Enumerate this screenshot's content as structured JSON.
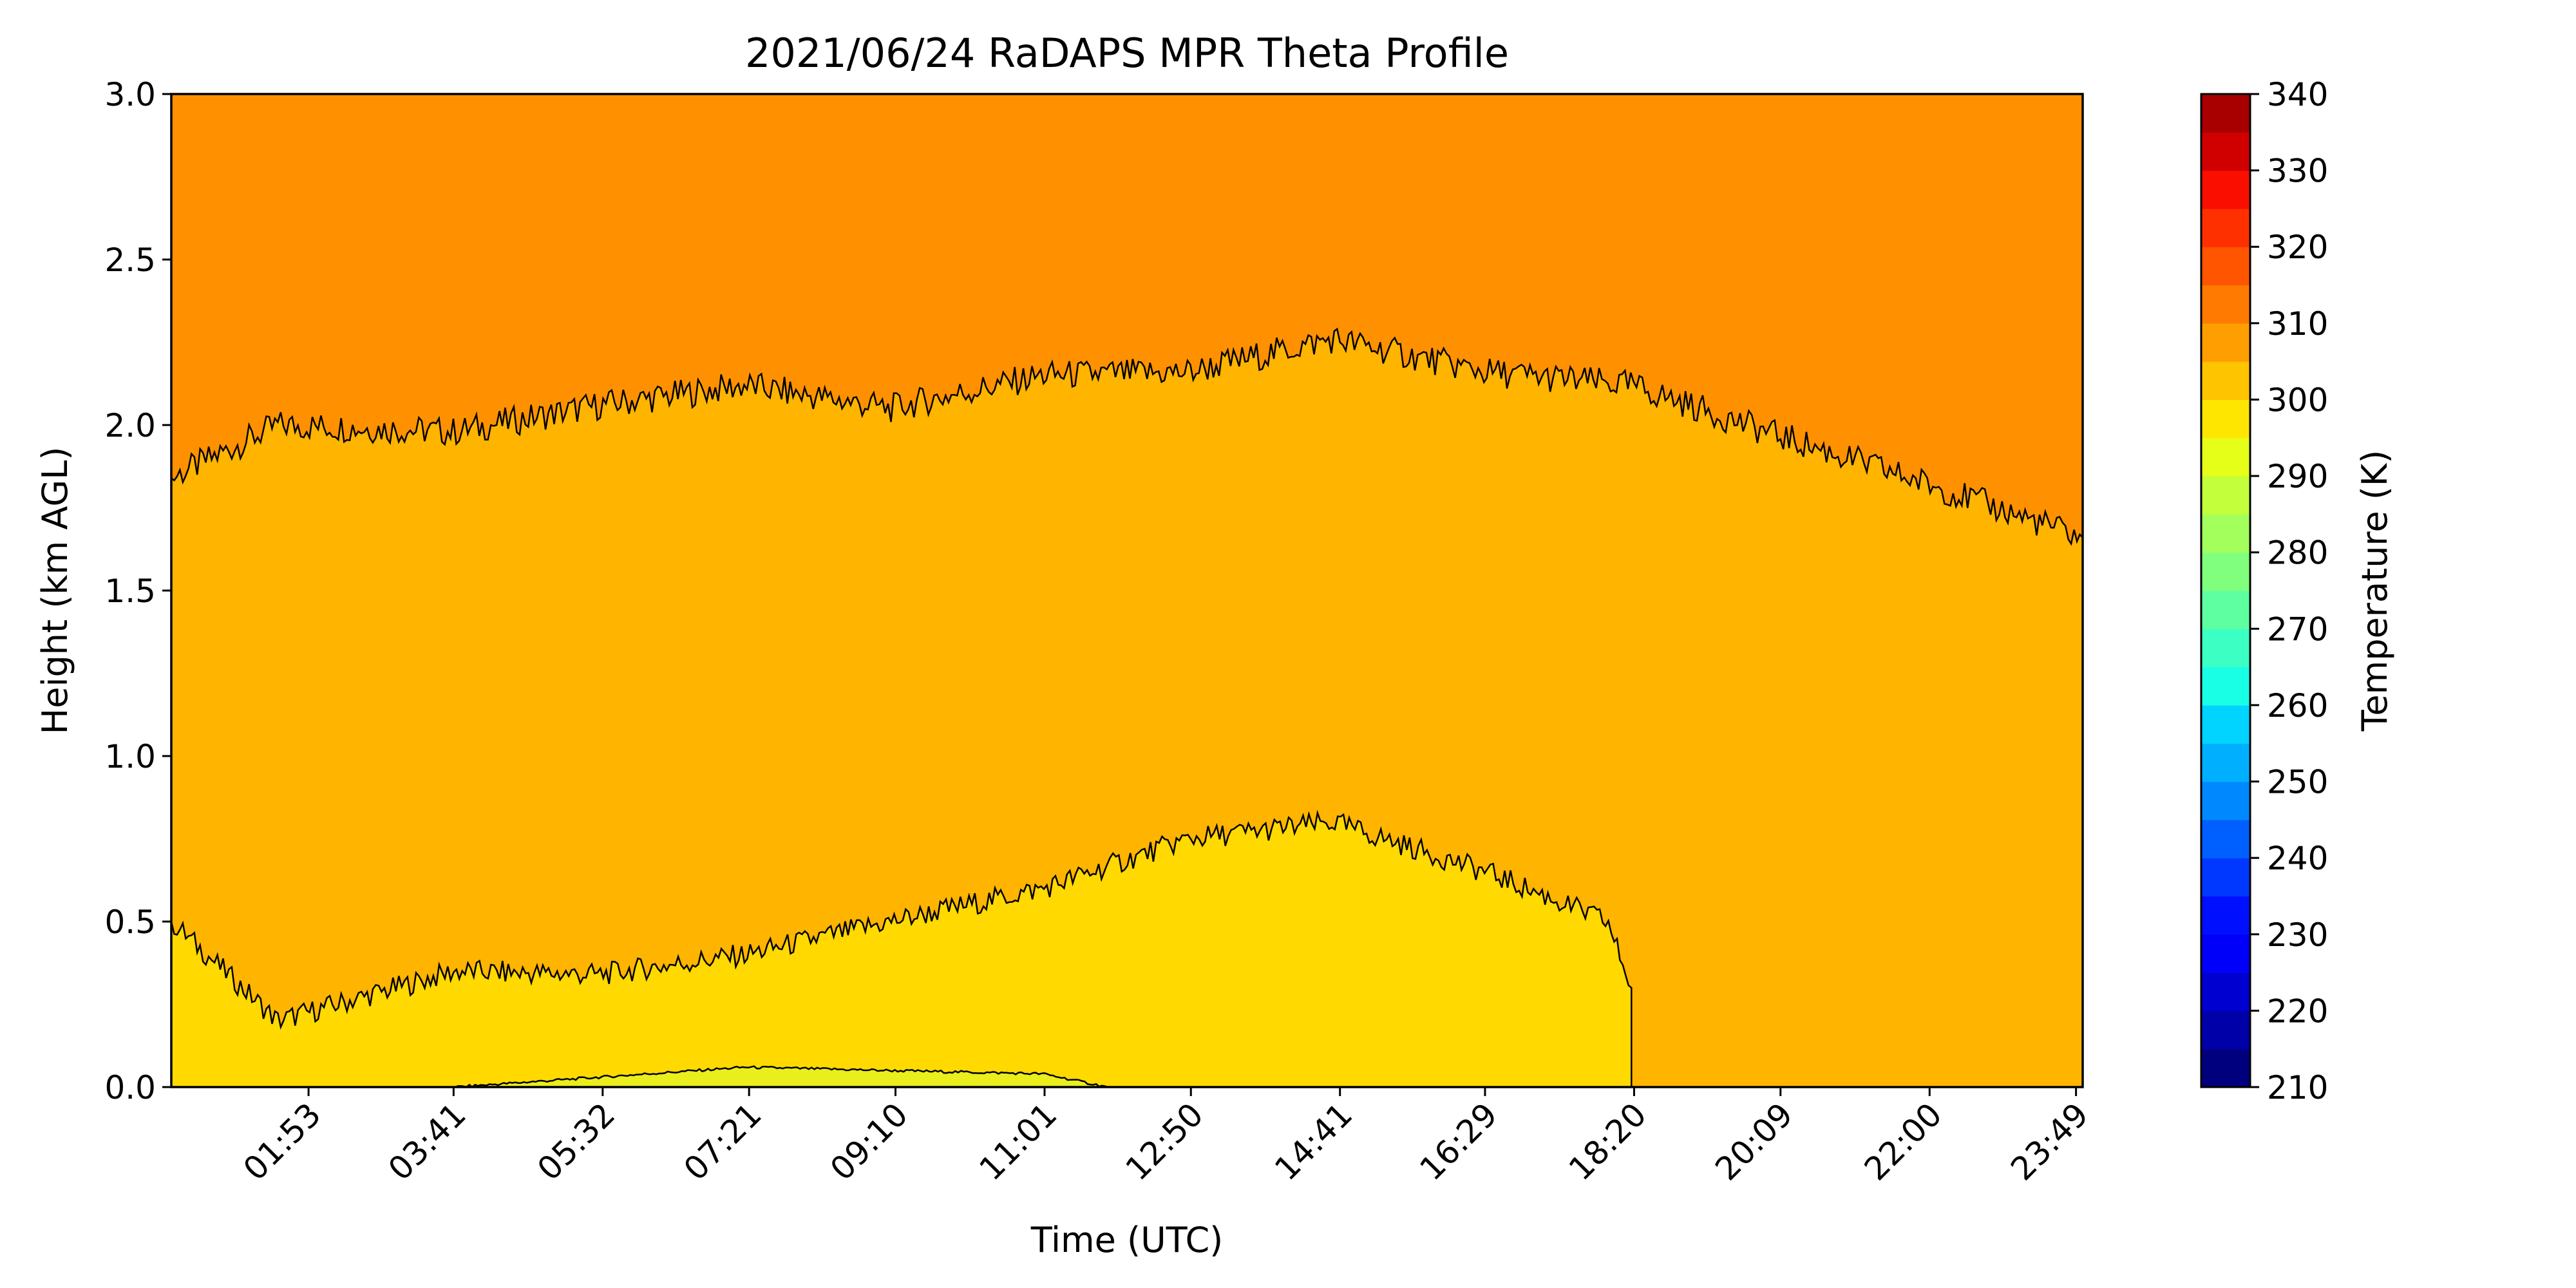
{
  "chart_data": {
    "type": "heatmap",
    "title": "2021/06/24 RaDAPS MPR Theta Profile",
    "xlabel": "Time (UTC)",
    "ylabel": "Height (km AGL)",
    "colorbar_label": "Temperature (K)",
    "x_tick_labels": [
      "01:53",
      "03:41",
      "05:32",
      "07:21",
      "09:10",
      "11:01",
      "12:50",
      "14:41",
      "16:29",
      "18:20",
      "20:09",
      "22:00",
      "23:49"
    ],
    "x_tick_hours": [
      1.883,
      3.683,
      5.533,
      7.35,
      9.167,
      11.017,
      12.833,
      14.683,
      16.483,
      18.333,
      20.15,
      22.0,
      23.817
    ],
    "xlim_hours": [
      0.18,
      23.9
    ],
    "ylim": [
      0,
      3.0
    ],
    "y_ticks": [
      0.0,
      0.5,
      1.0,
      1.5,
      2.0,
      2.5,
      3.0
    ],
    "colorbar_ticks": [
      210,
      220,
      230,
      240,
      250,
      260,
      270,
      280,
      290,
      300,
      310,
      320,
      330,
      340
    ],
    "colorbar_levels": [
      210,
      215,
      220,
      225,
      230,
      235,
      240,
      245,
      250,
      255,
      260,
      265,
      270,
      275,
      280,
      285,
      290,
      295,
      300,
      305,
      310,
      315,
      320,
      325,
      330,
      335,
      340
    ],
    "colorbar_colors": [
      "#00007f",
      "#0000a8",
      "#0000d1",
      "#0000fa",
      "#0010ff",
      "#0038ff",
      "#0060ff",
      "#0088ff",
      "#00b0ff",
      "#00d4ff",
      "#19ffe5",
      "#3bffc3",
      "#5effa0",
      "#80ff7e",
      "#a3ff5b",
      "#c3ff3b",
      "#e5ff19",
      "#ffe600",
      "#ffc400",
      "#ff9e00",
      "#ff7a00",
      "#ff5500",
      "#ff3000",
      "#fa0e00",
      "#d10000",
      "#a80000"
    ],
    "regions": [
      {
        "level": "300-305",
        "color": "#ffb400",
        "description": "middle layer"
      },
      {
        "level": "305-310",
        "color": "#ff9100",
        "top_boundary_hours": [
          0.18,
          1.5,
          3.7,
          5.5,
          7.3,
          9.1,
          11.0,
          12.8,
          14.6,
          16.5,
          18.3,
          20.1,
          22.0,
          23.9
        ],
        "top_boundary_km": [
          1.84,
          2.0,
          1.98,
          2.06,
          2.12,
          2.05,
          2.15,
          2.16,
          2.26,
          2.16,
          2.12,
          1.97,
          1.82,
          1.66
        ]
      },
      {
        "level": "295-300",
        "color": "#ffd900",
        "boundary_hours": [
          0.18,
          1.5,
          3.7,
          5.5,
          7.3,
          9.1,
          11.0,
          12.8,
          14.6,
          16.5,
          18.0,
          18.3
        ],
        "boundary_km": [
          0.5,
          0.2,
          0.35,
          0.34,
          0.4,
          0.5,
          0.6,
          0.75,
          0.8,
          0.65,
          0.5,
          0.3
        ]
      },
      {
        "level": "290-295",
        "color": "#e9ee1c",
        "boundary_hours": [
          3.7,
          5.5,
          7.3,
          9.1,
          11.0,
          11.8
        ],
        "boundary_km": [
          0.0,
          0.03,
          0.06,
          0.05,
          0.04,
          0.0
        ]
      }
    ],
    "grid": false,
    "legend": "colorbar-right"
  }
}
